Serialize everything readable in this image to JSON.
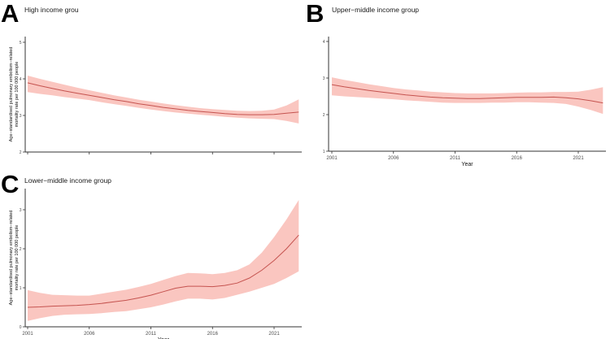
{
  "figure": {
    "background": "#ffffff",
    "line_color": "#c5534f",
    "ribbon_color": "#fac6c0",
    "axis_color": "#333333",
    "tick_label_color": "#4d4d4d",
    "axis_title_color": "#111111",
    "ylabel_line1": "Age−standardised pulmonary embolism−related",
    "ylabel_line2": "mortality rate per 100 000 people",
    "xlabel": "Year"
  },
  "panels": [
    {
      "label": "A",
      "title": "High income grou"
    },
    {
      "label": "B",
      "title": "Upper−middle income group"
    },
    {
      "label": "C",
      "title": "Lower−middle income group"
    }
  ],
  "chart_data": [
    {
      "type": "line",
      "panel_label": "A",
      "title": "High income grou",
      "xlabel": "",
      "ylabel": "Age−standardised pulmonary embolism−related mortality rate per 100 000 people",
      "grid": false,
      "legend": "none",
      "xlim": [
        2000.8,
        2023.3
      ],
      "ylim": [
        2,
        5.16
      ],
      "x_ticks": [
        2001,
        2006,
        2011,
        2016,
        2021
      ],
      "x_tick_labels": [],
      "y_ticks": [
        2,
        3,
        4,
        5
      ],
      "x": [
        2001,
        2002,
        2003,
        2004,
        2005,
        2006,
        2007,
        2008,
        2009,
        2010,
        2011,
        2012,
        2013,
        2014,
        2015,
        2016,
        2017,
        2018,
        2019,
        2020,
        2021,
        2022,
        2023
      ],
      "series": [
        {
          "name": "smoothed_rate",
          "values": [
            3.89,
            3.81,
            3.74,
            3.67,
            3.61,
            3.55,
            3.49,
            3.43,
            3.38,
            3.32,
            3.27,
            3.22,
            3.18,
            3.14,
            3.11,
            3.08,
            3.05,
            3.03,
            3.02,
            3.02,
            3.03,
            3.06,
            3.09
          ]
        },
        {
          "name": "ci_lower",
          "values": [
            3.64,
            3.59,
            3.55,
            3.5,
            3.46,
            3.42,
            3.36,
            3.31,
            3.26,
            3.21,
            3.16,
            3.12,
            3.08,
            3.05,
            3.02,
            2.99,
            2.96,
            2.94,
            2.92,
            2.91,
            2.9,
            2.85,
            2.78
          ]
        },
        {
          "name": "ci_upper",
          "values": [
            4.09,
            4.0,
            3.92,
            3.84,
            3.76,
            3.69,
            3.62,
            3.55,
            3.49,
            3.43,
            3.38,
            3.33,
            3.28,
            3.24,
            3.2,
            3.17,
            3.15,
            3.13,
            3.12,
            3.13,
            3.16,
            3.27,
            3.44
          ]
        }
      ]
    },
    {
      "type": "line",
      "panel_label": "B",
      "title": "Upper−middle income group",
      "xlabel": "Year",
      "ylabel": "",
      "grid": false,
      "legend": "none",
      "xlim": [
        2000.8,
        2023.3
      ],
      "ylim": [
        1,
        4.13
      ],
      "x_ticks": [
        2001,
        2006,
        2011,
        2016,
        2021
      ],
      "x_tick_labels": [
        "2001",
        "2006",
        "2011",
        "2016",
        "2021"
      ],
      "y_ticks": [
        1,
        2,
        3,
        4
      ],
      "x": [
        2001,
        2002,
        2003,
        2004,
        2005,
        2006,
        2007,
        2008,
        2009,
        2010,
        2011,
        2012,
        2013,
        2014,
        2015,
        2016,
        2017,
        2018,
        2019,
        2020,
        2021,
        2022,
        2023
      ],
      "series": [
        {
          "name": "smoothed_rate",
          "values": [
            2.82,
            2.76,
            2.71,
            2.66,
            2.62,
            2.58,
            2.54,
            2.51,
            2.48,
            2.46,
            2.45,
            2.44,
            2.44,
            2.45,
            2.46,
            2.47,
            2.47,
            2.47,
            2.48,
            2.46,
            2.43,
            2.38,
            2.32
          ]
        },
        {
          "name": "ci_lower",
          "values": [
            2.53,
            2.5,
            2.48,
            2.46,
            2.44,
            2.42,
            2.39,
            2.37,
            2.35,
            2.33,
            2.32,
            2.32,
            2.32,
            2.33,
            2.33,
            2.34,
            2.34,
            2.33,
            2.32,
            2.29,
            2.22,
            2.13,
            2.02
          ]
        },
        {
          "name": "ci_upper",
          "values": [
            3.02,
            2.95,
            2.89,
            2.83,
            2.78,
            2.73,
            2.69,
            2.66,
            2.63,
            2.61,
            2.59,
            2.58,
            2.58,
            2.58,
            2.59,
            2.6,
            2.61,
            2.61,
            2.62,
            2.62,
            2.63,
            2.68,
            2.75
          ]
        }
      ]
    },
    {
      "type": "line",
      "panel_label": "C",
      "title": "Lower−middle income group",
      "xlabel": "Year",
      "ylabel": "Age−standardised pulmonary embolism−related mortality rate per 100 000 people",
      "grid": false,
      "legend": "none",
      "xlim": [
        2000.8,
        2023.3
      ],
      "ylim": [
        0,
        3.54
      ],
      "x_ticks": [
        2001,
        2006,
        2011,
        2016,
        2021
      ],
      "x_tick_labels": [
        "2001",
        "2006",
        "2011",
        "2016",
        "2021"
      ],
      "y_ticks": [
        0,
        1,
        2,
        3
      ],
      "x": [
        2001,
        2002,
        2003,
        2004,
        2005,
        2006,
        2007,
        2008,
        2009,
        2010,
        2011,
        2012,
        2013,
        2014,
        2015,
        2016,
        2017,
        2018,
        2019,
        2020,
        2021,
        2022,
        2023
      ],
      "series": [
        {
          "name": "smoothed_rate",
          "values": [
            0.5,
            0.51,
            0.53,
            0.54,
            0.55,
            0.57,
            0.6,
            0.64,
            0.68,
            0.74,
            0.81,
            0.9,
            0.99,
            1.04,
            1.04,
            1.03,
            1.06,
            1.12,
            1.25,
            1.45,
            1.7,
            2.0,
            2.35
          ]
        },
        {
          "name": "ci_lower",
          "values": [
            0.15,
            0.22,
            0.28,
            0.31,
            0.32,
            0.33,
            0.35,
            0.38,
            0.4,
            0.45,
            0.5,
            0.57,
            0.65,
            0.72,
            0.72,
            0.7,
            0.74,
            0.82,
            0.9,
            1.0,
            1.1,
            1.25,
            1.42
          ]
        },
        {
          "name": "ci_upper",
          "values": [
            0.94,
            0.87,
            0.82,
            0.81,
            0.8,
            0.8,
            0.85,
            0.9,
            0.95,
            1.02,
            1.1,
            1.2,
            1.3,
            1.38,
            1.37,
            1.35,
            1.38,
            1.45,
            1.6,
            1.9,
            2.3,
            2.75,
            3.25
          ]
        }
      ]
    }
  ]
}
